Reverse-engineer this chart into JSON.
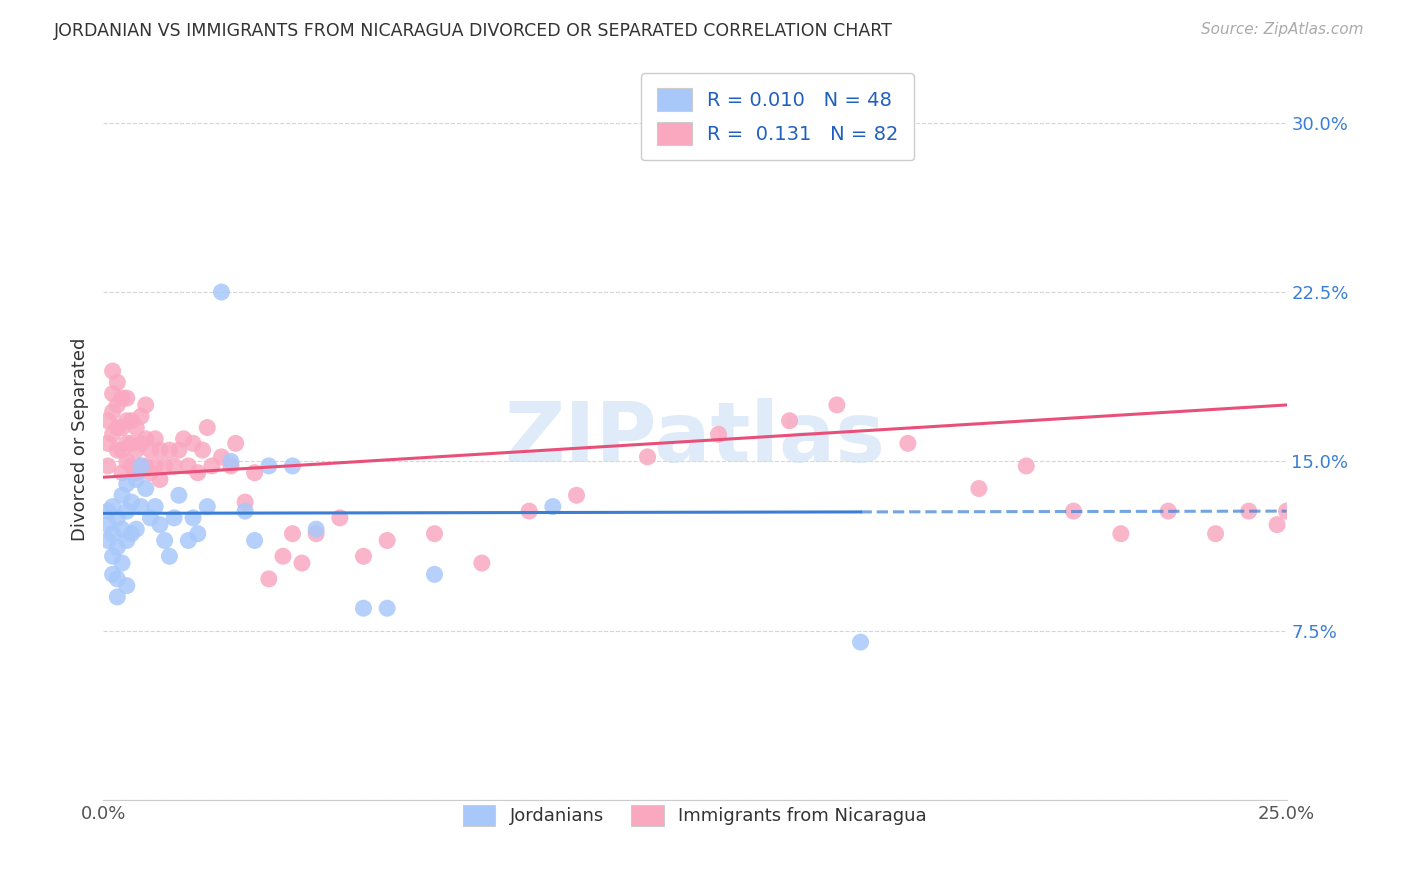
{
  "title": "JORDANIAN VS IMMIGRANTS FROM NICARAGUA DIVORCED OR SEPARATED CORRELATION CHART",
  "source": "Source: ZipAtlas.com",
  "ylabel": "Divorced or Separated",
  "xlim": [
    0.0,
    0.25
  ],
  "ylim": [
    0.0,
    0.32
  ],
  "color_blue": "#a8c8fa",
  "color_pink": "#f9a8c0",
  "line_blue": "#3a7fd5",
  "line_pink": "#e8507a",
  "watermark_color": "#ccdff5",
  "jordanians_x": [
    0.001,
    0.001,
    0.001,
    0.002,
    0.002,
    0.002,
    0.002,
    0.003,
    0.003,
    0.003,
    0.003,
    0.004,
    0.004,
    0.004,
    0.005,
    0.005,
    0.005,
    0.005,
    0.006,
    0.006,
    0.007,
    0.007,
    0.008,
    0.008,
    0.009,
    0.01,
    0.011,
    0.012,
    0.013,
    0.014,
    0.015,
    0.016,
    0.018,
    0.019,
    0.02,
    0.022,
    0.025,
    0.027,
    0.03,
    0.032,
    0.035,
    0.04,
    0.045,
    0.055,
    0.06,
    0.07,
    0.095,
    0.16
  ],
  "jordanians_y": [
    0.128,
    0.122,
    0.115,
    0.13,
    0.118,
    0.108,
    0.1,
    0.125,
    0.112,
    0.098,
    0.09,
    0.135,
    0.12,
    0.105,
    0.14,
    0.128,
    0.115,
    0.095,
    0.132,
    0.118,
    0.142,
    0.12,
    0.148,
    0.13,
    0.138,
    0.125,
    0.13,
    0.122,
    0.115,
    0.108,
    0.125,
    0.135,
    0.115,
    0.125,
    0.118,
    0.13,
    0.225,
    0.15,
    0.128,
    0.115,
    0.148,
    0.148,
    0.12,
    0.085,
    0.085,
    0.1,
    0.13,
    0.07
  ],
  "nicaragua_x": [
    0.001,
    0.001,
    0.001,
    0.002,
    0.002,
    0.002,
    0.002,
    0.003,
    0.003,
    0.003,
    0.003,
    0.004,
    0.004,
    0.004,
    0.004,
    0.005,
    0.005,
    0.005,
    0.005,
    0.006,
    0.006,
    0.006,
    0.007,
    0.007,
    0.007,
    0.008,
    0.008,
    0.008,
    0.009,
    0.009,
    0.009,
    0.01,
    0.01,
    0.011,
    0.011,
    0.012,
    0.012,
    0.013,
    0.014,
    0.015,
    0.016,
    0.017,
    0.018,
    0.019,
    0.02,
    0.021,
    0.022,
    0.023,
    0.025,
    0.027,
    0.028,
    0.03,
    0.032,
    0.035,
    0.038,
    0.04,
    0.042,
    0.045,
    0.05,
    0.055,
    0.06,
    0.07,
    0.08,
    0.09,
    0.1,
    0.115,
    0.13,
    0.145,
    0.155,
    0.17,
    0.185,
    0.195,
    0.205,
    0.215,
    0.225,
    0.235,
    0.242,
    0.248,
    0.25,
    0.252,
    0.255,
    0.258
  ],
  "nicaragua_y": [
    0.148,
    0.158,
    0.168,
    0.162,
    0.172,
    0.18,
    0.19,
    0.155,
    0.165,
    0.175,
    0.185,
    0.145,
    0.155,
    0.165,
    0.178,
    0.15,
    0.158,
    0.168,
    0.178,
    0.148,
    0.158,
    0.168,
    0.145,
    0.155,
    0.165,
    0.148,
    0.158,
    0.17,
    0.148,
    0.16,
    0.175,
    0.145,
    0.155,
    0.148,
    0.16,
    0.142,
    0.155,
    0.148,
    0.155,
    0.148,
    0.155,
    0.16,
    0.148,
    0.158,
    0.145,
    0.155,
    0.165,
    0.148,
    0.152,
    0.148,
    0.158,
    0.132,
    0.145,
    0.098,
    0.108,
    0.118,
    0.105,
    0.118,
    0.125,
    0.108,
    0.115,
    0.118,
    0.105,
    0.128,
    0.135,
    0.152,
    0.162,
    0.168,
    0.175,
    0.158,
    0.138,
    0.148,
    0.128,
    0.118,
    0.128,
    0.118,
    0.128,
    0.122,
    0.128,
    0.118,
    0.122,
    0.118
  ]
}
